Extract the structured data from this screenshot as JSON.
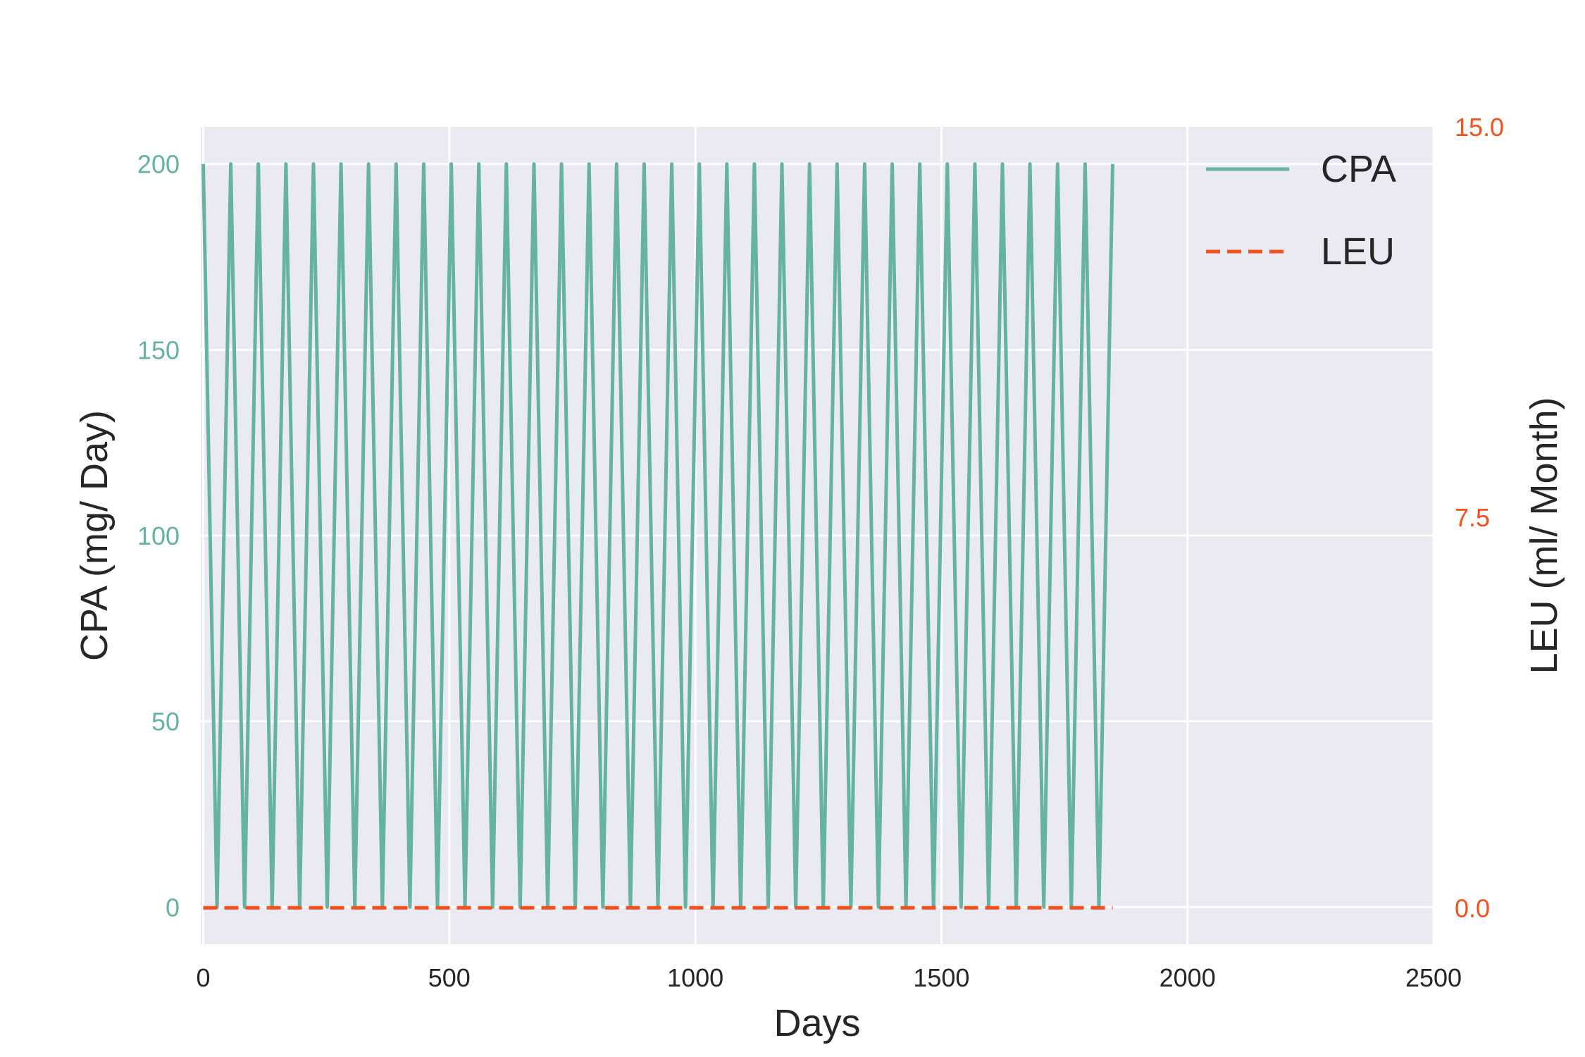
{
  "chart_data": {
    "type": "line",
    "title": "",
    "xlabel": "Days",
    "ylabel_left": "CPA (mg/ Day)",
    "ylabel_right": "LEU (ml/ Month)",
    "xlim": [
      -5,
      2500
    ],
    "ylim_left": [
      -10,
      210
    ],
    "ylim_right": [
      -0.7,
      15.0
    ],
    "x_ticks": [
      0,
      500,
      1000,
      1500,
      2000,
      2500
    ],
    "x_tick_labels": [
      "0",
      "500",
      "1000",
      "1500",
      "2000",
      "2500"
    ],
    "y_left_ticks": [
      0,
      50,
      100,
      150,
      200
    ],
    "y_left_tick_labels": [
      "0",
      "50",
      "100",
      "150",
      "200"
    ],
    "y_right_ticks": [
      0.0,
      7.5,
      15.0
    ],
    "y_right_tick_labels": [
      "0.0",
      "7.5",
      "15.0"
    ],
    "grid": true,
    "legend_position": "top-right",
    "colors": {
      "cpa": "#66b2a3",
      "leu": "#f4511e",
      "plot_bg": "#eaeaf2",
      "grid": "#ffffff"
    },
    "series": [
      {
        "name": "CPA",
        "axis": "left",
        "style": "solid",
        "x": [
          0,
          28,
          56,
          84,
          112,
          140,
          168,
          196,
          224,
          252,
          280,
          308,
          336,
          364,
          392,
          420,
          448,
          476,
          504,
          532,
          560,
          588,
          616,
          644,
          672,
          700,
          728,
          756,
          784,
          812,
          840,
          868,
          896,
          924,
          952,
          980,
          1008,
          1036,
          1064,
          1092,
          1120,
          1148,
          1176,
          1204,
          1232,
          1260,
          1288,
          1316,
          1344,
          1372,
          1400,
          1428,
          1456,
          1484,
          1512,
          1540,
          1568,
          1596,
          1624,
          1652,
          1680,
          1708,
          1736,
          1764,
          1792,
          1820,
          1848
        ],
        "y": [
          200,
          0,
          200,
          0,
          200,
          0,
          200,
          0,
          200,
          0,
          200,
          0,
          200,
          0,
          200,
          0,
          200,
          0,
          200,
          0,
          200,
          0,
          200,
          0,
          200,
          0,
          200,
          0,
          200,
          0,
          200,
          0,
          200,
          0,
          200,
          0,
          200,
          0,
          200,
          0,
          200,
          0,
          200,
          0,
          200,
          0,
          200,
          0,
          200,
          0,
          200,
          0,
          200,
          0,
          200,
          0,
          200,
          0,
          200,
          0,
          200,
          0,
          200,
          0,
          200,
          0,
          200
        ]
      },
      {
        "name": "LEU",
        "axis": "right",
        "style": "dashed",
        "x": [
          0,
          1848
        ],
        "y": [
          0.0,
          0.0
        ]
      }
    ]
  }
}
